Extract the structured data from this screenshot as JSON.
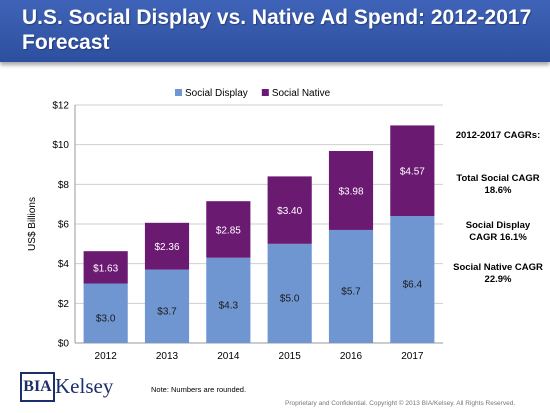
{
  "title": "U.S. Social Display vs. Native Ad Spend: 2012-2017 Forecast",
  "cagr": {
    "heading": "2012-2017 CAGRs:",
    "items": [
      "Total Social CAGR 18.6%",
      "Social  Display CAGR 16.1%",
      "Social Native CAGR 22.9%"
    ]
  },
  "logo": {
    "part1": "BIA",
    "part2": "Kelsey"
  },
  "note": "Note: Numbers  are rounded.",
  "footer": "Proprietary and Confidential. Copyright © 2013 BIA/Kelsey. All Rights Reserved.",
  "chart_data": {
    "type": "bar",
    "stacked": true,
    "categories": [
      "2012",
      "2013",
      "2014",
      "2015",
      "2016",
      "2017"
    ],
    "series": [
      {
        "name": "Social Display",
        "color": "#6f96d1",
        "values": [
          3.0,
          3.7,
          4.3,
          5.0,
          5.7,
          6.4
        ],
        "labels": [
          "$3.0",
          "$3.7",
          "$4.3",
          "$5.0",
          "$5.7",
          "$6.4"
        ]
      },
      {
        "name": "Social Native",
        "color": "#6b1a72",
        "values": [
          1.63,
          2.36,
          2.85,
          3.4,
          3.98,
          4.57
        ],
        "labels": [
          "$1.63",
          "$2.36",
          "$2.85",
          "$3.40",
          "$3.98",
          "$4.57"
        ]
      }
    ],
    "ylabel": "US$ Billions",
    "ylim": [
      0,
      12
    ],
    "yticks": [
      "$0",
      "$2",
      "$4",
      "$6",
      "$8",
      "$10",
      "$12"
    ],
    "grid": true,
    "legend": "top-center"
  }
}
